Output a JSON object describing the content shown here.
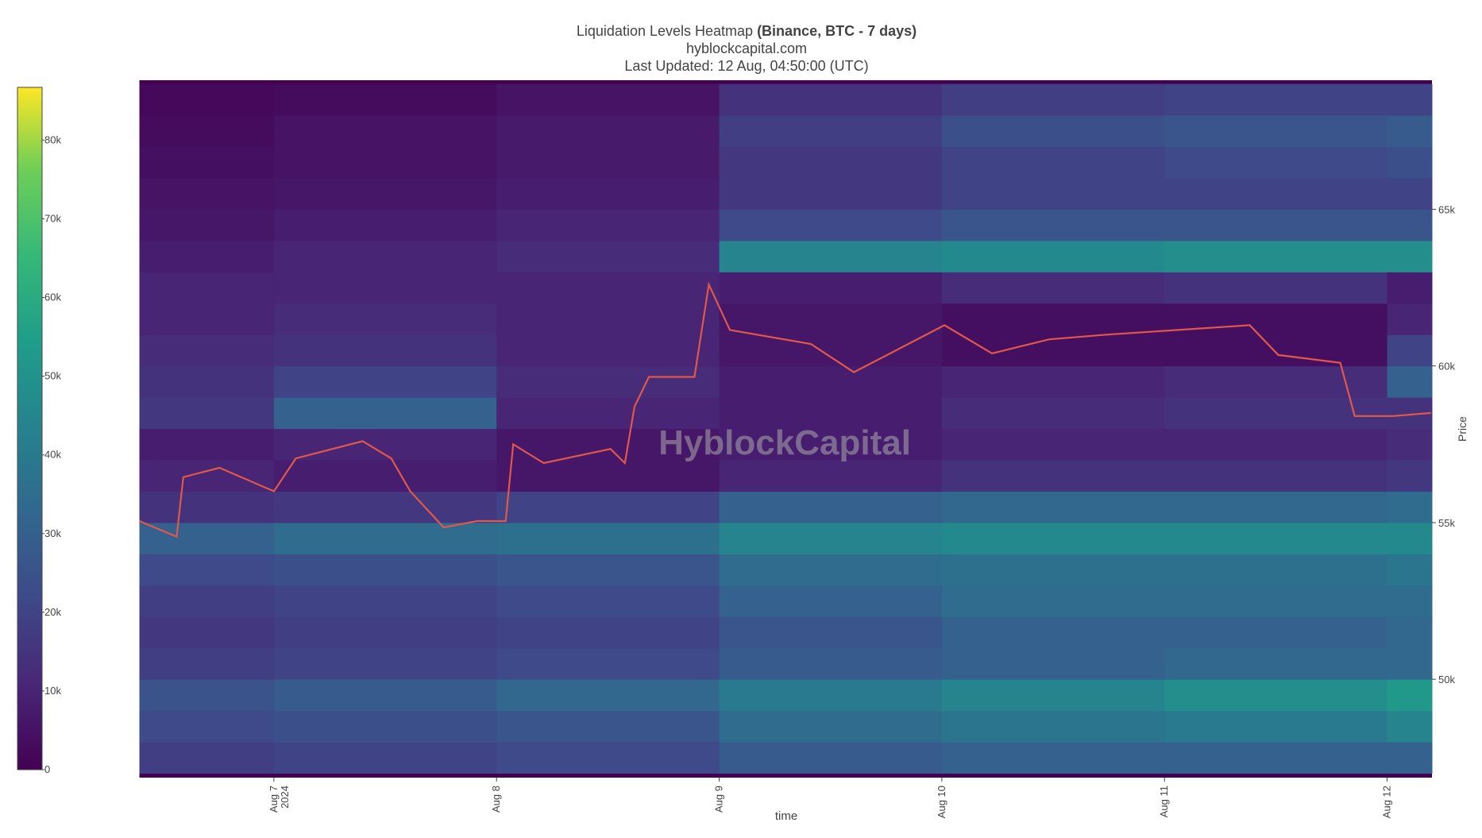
{
  "chart_data": {
    "type": "heatmap",
    "title": "Liquidation Levels Heatmap",
    "title_bold": "(Binance, BTC - 7 days)",
    "subtitle": "hyblockcapital.com",
    "updated": "Last Updated: 12 Aug, 04:50:00 (UTC)",
    "watermark": "HyblockCapital",
    "xlabel": "time",
    "ylabel": "Price",
    "colorscale": "Viridis",
    "xlim": [
      "2024-08-06 09:30",
      "2024-08-12 04:50"
    ],
    "xticks": [
      {
        "value": "2024-08-07 00:00",
        "label": "Aug 7",
        "sublabel": "2024"
      },
      {
        "value": "2024-08-08 00:00",
        "label": "Aug 8"
      },
      {
        "value": "2024-08-09 00:00",
        "label": "Aug 9"
      },
      {
        "value": "2024-08-10 00:00",
        "label": "Aug 10"
      },
      {
        "value": "2024-08-11 00:00",
        "label": "Aug 11"
      },
      {
        "value": "2024-08-12 00:00",
        "label": "Aug 12"
      }
    ],
    "ylim": [
      46860,
      69120
    ],
    "yticks": [
      {
        "value": 50000,
        "label": "50k"
      },
      {
        "value": 55000,
        "label": "55k"
      },
      {
        "value": 60000,
        "label": "60k"
      },
      {
        "value": 65000,
        "label": "65k"
      }
    ],
    "zlim": [
      0,
      86700
    ],
    "zticks": [
      0,
      {
        "value": 10000,
        "label": "10k"
      },
      {
        "value": 20000,
        "label": "20k"
      },
      {
        "value": 30000,
        "label": "30k"
      },
      {
        "value": 40000,
        "label": "40k"
      },
      {
        "value": 50000,
        "label": "50k"
      },
      {
        "value": 60000,
        "label": "60k"
      },
      {
        "value": 70000,
        "label": "70k"
      },
      {
        "value": 80000,
        "label": "80k"
      }
    ],
    "x_edges": [
      "2024-08-06 09:30",
      "2024-08-07 00:00",
      "2024-08-08 00:00",
      "2024-08-09 00:00",
      "2024-08-10 00:00",
      "2024-08-11 00:00",
      "2024-08-12 00:00",
      "2024-08-12 04:50"
    ],
    "y_edges": [
      47000,
      48000,
      49000,
      50000,
      51000,
      52000,
      53000,
      54000,
      55000,
      56000,
      57000,
      58000,
      59000,
      60000,
      61000,
      62000,
      63000,
      64000,
      65000,
      66000,
      67000,
      68000,
      69000
    ],
    "z": [
      [
        18000,
        20000,
        22000,
        28000,
        30000,
        30000,
        30000
      ],
      [
        22000,
        24000,
        26000,
        34000,
        38000,
        40000,
        44000
      ],
      [
        25000,
        28000,
        32000,
        40000,
        44000,
        48000,
        52000
      ],
      [
        18000,
        20000,
        22000,
        28000,
        30000,
        32000,
        32000
      ],
      [
        16000,
        18000,
        20000,
        26000,
        30000,
        30000,
        32000
      ],
      [
        18000,
        20000,
        22000,
        30000,
        34000,
        34000,
        34000
      ],
      [
        22000,
        24000,
        26000,
        34000,
        36000,
        36000,
        38000
      ],
      [
        30000,
        34000,
        36000,
        44000,
        46000,
        46000,
        46000
      ],
      [
        14000,
        16000,
        20000,
        30000,
        32000,
        32000,
        34000
      ],
      [
        10000,
        8000,
        6000,
        10000,
        14000,
        14000,
        16000
      ],
      [
        8000,
        10000,
        6000,
        8000,
        10000,
        10000,
        12000
      ],
      [
        16000,
        30000,
        10000,
        8000,
        12000,
        14000,
        14000
      ],
      [
        14000,
        20000,
        12000,
        8000,
        10000,
        12000,
        30000
      ],
      [
        12000,
        14000,
        10000,
        6000,
        4000,
        4000,
        20000
      ],
      [
        10000,
        12000,
        10000,
        6000,
        4000,
        4000,
        10000
      ],
      [
        10000,
        10000,
        10000,
        8000,
        12000,
        14000,
        8000
      ],
      [
        8000,
        10000,
        12000,
        44000,
        46000,
        48000,
        48000
      ],
      [
        6000,
        8000,
        10000,
        22000,
        26000,
        26000,
        26000
      ],
      [
        5000,
        6000,
        8000,
        16000,
        20000,
        20000,
        20000
      ],
      [
        4000,
        5000,
        7000,
        16000,
        20000,
        22000,
        24000
      ],
      [
        3000,
        5000,
        7000,
        18000,
        24000,
        26000,
        28000
      ],
      [
        2000,
        3000,
        5000,
        14000,
        18000,
        20000,
        20000
      ]
    ],
    "price": {
      "name": "Price",
      "color": "#e0584a",
      "x": [
        "2024-08-06 09:30",
        "2024-08-06 13:31",
        "2024-08-06 14:14",
        "2024-08-06 18:08",
        "2024-08-07 00:00",
        "2024-08-07 02:22",
        "2024-08-07 09:34",
        "2024-08-07 12:39",
        "2024-08-07 14:42",
        "2024-08-07 18:18",
        "2024-08-07 21:54",
        "2024-08-08 00:59",
        "2024-08-08 01:48",
        "2024-08-08 05:05",
        "2024-08-08 12:17",
        "2024-08-08 13:50",
        "2024-08-08 14:52",
        "2024-08-08 16:25",
        "2024-08-08 21:20",
        "2024-08-08 22:53",
        "2024-08-09 01:09",
        "2024-08-09 09:53",
        "2024-08-09 14:31",
        "2024-08-10 00:17",
        "2024-08-10 05:25",
        "2024-08-10 11:35",
        "2024-08-10 17:46",
        "2024-08-11 09:11",
        "2024-08-11 12:16",
        "2024-08-11 18:57",
        "2024-08-11 20:30",
        "2024-08-12 00:37",
        "2024-08-12 04:44"
      ],
      "values": [
        55050,
        54550,
        56450,
        56750,
        56000,
        57050,
        57600,
        57050,
        56000,
        54850,
        55050,
        55050,
        57500,
        56900,
        57350,
        56900,
        58700,
        59650,
        59650,
        62600,
        61150,
        60700,
        59800,
        61300,
        60400,
        60850,
        61000,
        61300,
        60350,
        60100,
        58400,
        58400,
        58500
      ]
    }
  }
}
